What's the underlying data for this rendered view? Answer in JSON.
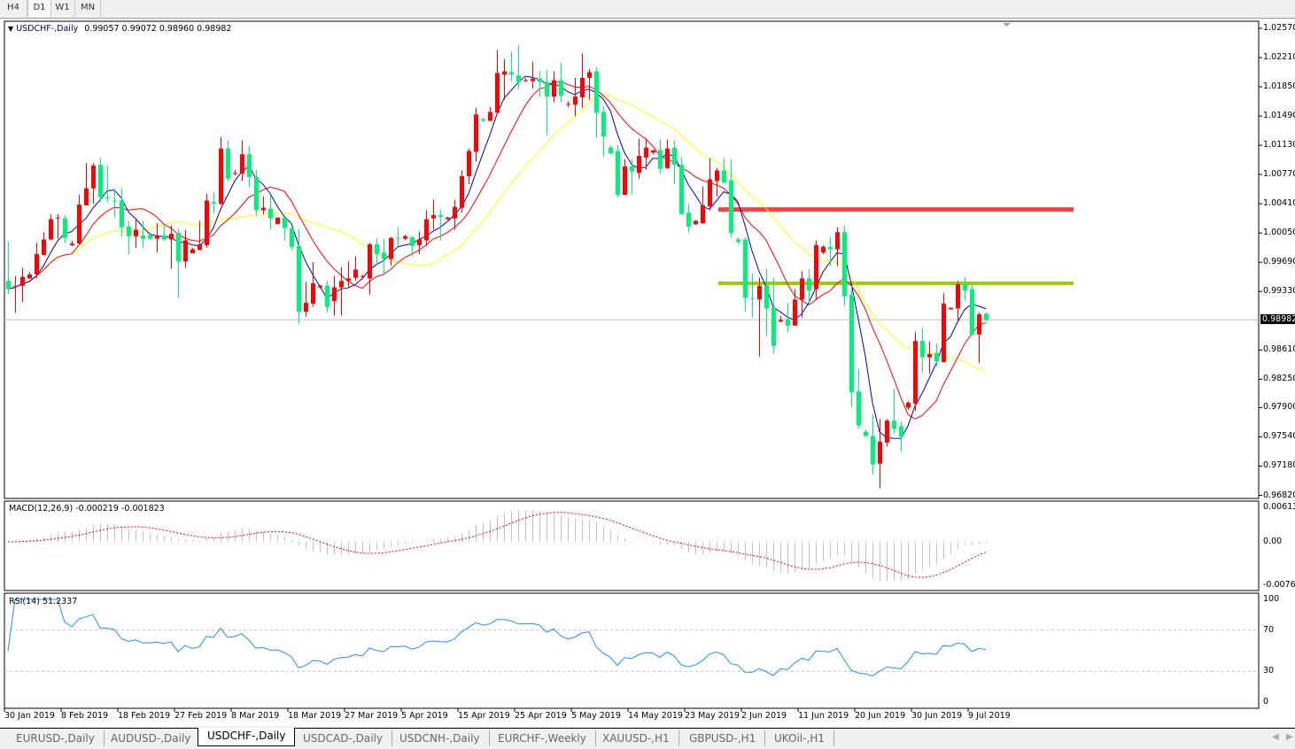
{
  "toolbar": {
    "timeframes": [
      "H4",
      "D1",
      "W1",
      "MN"
    ],
    "active": "D1"
  },
  "header": {
    "symbol": "USDCHF-,Daily",
    "ohlc": "0.99057 0.99072 0.98960 0.98982"
  },
  "macd_header": {
    "label": "MACD(12,26,9)",
    "values": "-0.000219 -0.001823"
  },
  "rsi_header": {
    "label": "RSI(14)",
    "value": "51.2337"
  },
  "tabs": [
    "EURUSD-,Daily",
    "AUDUSD-,Daily",
    "USDCHF-,Daily",
    "USDCAD-,Daily",
    "USDCNH-,Daily",
    "EURCHF-,Weekly",
    "XAUUSD-,H1",
    "GBPUSD-,H1",
    "UKOil-,H1"
  ],
  "active_tab": "USDCHF-,Daily",
  "colors": {
    "bull": "#ff0000",
    "bear": "#00f07a",
    "ma_fast": "#0000cc",
    "ma_mid": "#ff0000",
    "ma_slow": "#ffff00",
    "resistance": "#ff4040",
    "support": "#9acd00",
    "macd_hist": "#c0c0c0",
    "macd_signal": "#ff0000",
    "rsi": "#1e90ff"
  },
  "chart_data": {
    "type": "candlestick",
    "symbol": "USDCHF-",
    "timeframe": "Daily",
    "date_labels": [
      "30 Jan 2019",
      "8 Feb 2019",
      "18 Feb 2019",
      "27 Feb 2019",
      "8 Mar 2019",
      "18 Mar 2019",
      "27 Mar 2019",
      "5 Apr 2019",
      "15 Apr 2019",
      "25 Apr 2019",
      "5 May 2019",
      "14 May 2019",
      "23 May 2019",
      "2 Jun 2019",
      "11 Jun 2019",
      "20 Jun 2019",
      "30 Jun 2019",
      "9 Jul 2019"
    ],
    "price_ticks": [
      "1.02570",
      "1.02210",
      "1.01850",
      "1.01490",
      "1.01130",
      "1.00770",
      "1.00410",
      "1.00050",
      "0.99690",
      "0.99330",
      "0.98610",
      "0.98250",
      "0.97900",
      "0.97540",
      "0.97180",
      "0.96820"
    ],
    "current_price": "0.98982",
    "ylim": [
      0.9682,
      1.0257
    ],
    "horizontal_lines": [
      {
        "price": 1.0034,
        "color": "#ff4040"
      },
      {
        "price": 0.9943,
        "color": "#9acd00"
      }
    ],
    "candles_ohlc": [
      [
        0.9946,
        0.9994,
        0.993,
        0.9936
      ],
      [
        0.9939,
        0.9952,
        0.9907,
        0.994
      ],
      [
        0.994,
        0.9962,
        0.992,
        0.9951
      ],
      [
        0.9949,
        0.9957,
        0.9948,
        0.9954
      ],
      [
        0.9954,
        0.9993,
        0.9949,
        0.9979
      ],
      [
        0.9978,
        1.0006,
        0.9977,
        0.9997
      ],
      [
        0.9997,
        1.0028,
        0.9996,
        1.0022
      ],
      [
        1.0023,
        1.0028,
        0.9998,
        1.0024
      ],
      [
        1.0023,
        1.0027,
        0.9993,
        0.9999
      ],
      [
        0.999,
        0.9996,
        0.9989,
        0.9992
      ],
      [
        0.9992,
        1.0052,
        0.9991,
        1.004
      ],
      [
        1.0039,
        1.0091,
        1.0039,
        1.006
      ],
      [
        1.006,
        1.0091,
        1.0041,
        1.0088
      ],
      [
        1.0089,
        1.0097,
        1.0043,
        1.0049
      ],
      [
        1.0049,
        1.0088,
        1.0043,
        1.0048
      ],
      [
        1.0045,
        1.006,
        1.0024,
        1.0044
      ],
      [
        1.0045,
        1.006,
        1.0,
        1.0012
      ],
      [
        1.0013,
        1.002,
        0.9979,
        1.0001
      ],
      [
        1.0001,
        1.0023,
        0.9987,
        1.0009
      ],
      [
        1.0002,
        1.002,
        0.9986,
        0.9998
      ],
      [
        1.0002,
        1.0006,
        0.9996,
        0.9998
      ],
      [
        0.9998,
        1.0017,
        0.9981,
        1.0001
      ],
      [
        1.0002,
        1.0017,
        0.9995,
        0.9997
      ],
      [
        0.9997,
        1.0014,
        0.9961,
        1.0004
      ],
      [
        1.0005,
        1.001,
        0.9925,
        0.997
      ],
      [
        0.997,
        1.0009,
        0.9962,
        0.9996
      ],
      [
        0.998,
        0.9987,
        0.998,
        0.9985
      ],
      [
        0.9984,
        1.002,
        0.9984,
        0.9991
      ],
      [
        0.999,
        1.0053,
        0.9987,
        1.0045
      ],
      [
        1.0043,
        1.0055,
        1.0029,
        1.0041
      ],
      [
        1.0041,
        1.0123,
        1.0039,
        1.0109
      ],
      [
        1.0109,
        1.0119,
        1.0069,
        1.0072
      ],
      [
        1.0078,
        1.0083,
        1.0076,
        1.0079
      ],
      [
        1.0078,
        1.0119,
        1.0069,
        1.0102
      ],
      [
        1.0102,
        1.0112,
        1.0061,
        1.0074
      ],
      [
        1.0074,
        1.0083,
        1.0026,
        1.0033
      ],
      [
        1.0033,
        1.005,
        1.0028,
        1.0036
      ],
      [
        1.0035,
        1.0052,
        1.0009,
        1.0023
      ],
      [
        1.0016,
        1.0024,
        1.0016,
        1.0024
      ],
      [
        1.0024,
        1.0024,
        0.9996,
        1.0011
      ],
      [
        1.0011,
        1.0011,
        0.9984,
        0.9988
      ],
      [
        0.9989,
        1.001,
        0.9893,
        0.9908
      ],
      [
        0.9908,
        0.9945,
        0.9902,
        0.9919
      ],
      [
        0.9918,
        0.9969,
        0.9914,
        0.9943
      ],
      [
        0.9938,
        0.9941,
        0.9937,
        0.994
      ],
      [
        0.994,
        0.9946,
        0.9907,
        0.9914
      ],
      [
        0.9921,
        0.9952,
        0.9903,
        0.9938
      ],
      [
        0.9938,
        0.9963,
        0.9903,
        0.9946
      ],
      [
        0.9946,
        0.997,
        0.9938,
        0.9949
      ],
      [
        0.995,
        0.9976,
        0.9946,
        0.996
      ],
      [
        0.9951,
        0.9954,
        0.9948,
        0.9952
      ],
      [
        0.9949,
        0.9993,
        0.9929,
        0.9991
      ],
      [
        0.9991,
        0.9999,
        0.9965,
        0.9979
      ],
      [
        0.9981,
        0.9998,
        0.9952,
        0.9973
      ],
      [
        0.9973,
        1.0,
        0.9965,
        0.9999
      ],
      [
        0.9999,
        1.0012,
        0.9989,
        0.9998
      ],
      [
        0.9998,
        1.0003,
        0.9996,
        1.0001
      ],
      [
        1.0,
        1.0001,
        0.9976,
        0.9989
      ],
      [
        0.999,
        1.0007,
        0.9979,
        0.9997
      ],
      [
        0.9996,
        1.0033,
        0.9989,
        1.0022
      ],
      [
        1.0023,
        1.0046,
        1.0009,
        1.0027
      ],
      [
        1.0027,
        1.0034,
        0.9996,
        1.0025
      ],
      [
        1.0022,
        1.0025,
        1.0021,
        1.0024
      ],
      [
        1.0023,
        1.0046,
        1.0009,
        1.0037
      ],
      [
        1.0036,
        1.0082,
        1.003,
        1.0075
      ],
      [
        1.0075,
        1.0109,
        1.0065,
        1.0106
      ],
      [
        1.0105,
        1.0159,
        1.0093,
        1.0151
      ],
      [
        1.0145,
        1.0147,
        1.0142,
        1.0143
      ],
      [
        1.0143,
        1.016,
        1.0143,
        1.0154
      ],
      [
        1.0153,
        1.023,
        1.0153,
        1.0202
      ],
      [
        1.02,
        1.0219,
        1.0169,
        1.0204
      ],
      [
        1.0203,
        1.0228,
        1.0192,
        1.02
      ],
      [
        1.0199,
        1.0236,
        1.0182,
        1.0191
      ],
      [
        1.0192,
        1.0196,
        1.0191,
        1.0193
      ],
      [
        1.0192,
        1.0216,
        1.0183,
        1.0195
      ],
      [
        1.0195,
        1.0204,
        1.0173,
        1.0191
      ],
      [
        1.0191,
        1.0206,
        1.0125,
        1.0173
      ],
      [
        1.0173,
        1.0204,
        1.0166,
        1.0193
      ],
      [
        1.0193,
        1.0215,
        1.0166,
        1.0174
      ],
      [
        1.0163,
        1.0167,
        1.016,
        1.0164
      ],
      [
        1.0163,
        1.0196,
        1.0149,
        1.0173
      ],
      [
        1.0172,
        1.0226,
        1.0159,
        1.0196
      ],
      [
        1.0196,
        1.0207,
        1.0169,
        1.0203
      ],
      [
        1.0204,
        1.0209,
        1.0122,
        1.0153
      ],
      [
        1.0154,
        1.0161,
        1.0099,
        1.0124
      ],
      [
        1.011,
        1.0113,
        1.0102,
        1.0103
      ],
      [
        1.0106,
        1.0113,
        1.0049,
        1.0052
      ],
      [
        1.0052,
        1.0096,
        1.0052,
        1.0087
      ],
      [
        1.0087,
        1.0096,
        1.0053,
        1.0081
      ],
      [
        1.0079,
        1.0121,
        1.0072,
        1.01
      ],
      [
        1.0098,
        1.0121,
        1.0083,
        1.011
      ],
      [
        1.0104,
        1.0107,
        1.0102,
        1.0107
      ],
      [
        1.0107,
        1.012,
        1.0078,
        1.0084
      ],
      [
        1.0085,
        1.012,
        1.0084,
        1.0109
      ],
      [
        1.011,
        1.0119,
        1.0065,
        1.0089
      ],
      [
        1.0089,
        1.0098,
        1.0028,
        1.0028
      ],
      [
        1.003,
        1.0041,
        1.0006,
        1.0013
      ],
      [
        1.0016,
        1.0021,
        1.0015,
        1.002
      ],
      [
        1.0017,
        1.0062,
        1.0016,
        1.0039
      ],
      [
        1.0038,
        1.0097,
        1.0033,
        1.0071
      ],
      [
        1.0069,
        1.0085,
        1.005,
        1.0082
      ],
      [
        1.0082,
        1.0097,
        1.0066,
        1.0067
      ],
      [
        1.007,
        1.0096,
        0.9999,
        1.0005
      ],
      [
        0.9997,
        1.0,
        0.9992,
        0.9994
      ],
      [
        0.9997,
        1.0,
        0.9908,
        0.9925
      ],
      [
        0.9925,
        0.9955,
        0.9901,
        0.9924
      ],
      [
        0.9923,
        0.995,
        0.9853,
        0.994
      ],
      [
        0.994,
        0.9961,
        0.9878,
        0.9912
      ],
      [
        0.9913,
        0.995,
        0.9857,
        0.9866
      ],
      [
        0.9896,
        0.9903,
        0.9895,
        0.9898
      ],
      [
        0.9899,
        0.9919,
        0.9883,
        0.9891
      ],
      [
        0.9891,
        0.9936,
        0.9891,
        0.9923
      ],
      [
        0.9923,
        0.9958,
        0.9901,
        0.9949
      ],
      [
        0.9949,
        0.996,
        0.9916,
        0.9934
      ],
      [
        0.9936,
        0.9996,
        0.9923,
        0.999
      ],
      [
        0.9981,
        0.999,
        0.9979,
        0.9988
      ],
      [
        0.9988,
        1.0,
        0.9964,
        0.9985
      ],
      [
        0.9985,
        1.0012,
        0.9964,
        1.0006
      ],
      [
        1.0006,
        1.0014,
        0.9915,
        0.9927
      ],
      [
        0.9929,
        0.994,
        0.979,
        0.9809
      ],
      [
        0.981,
        0.9837,
        0.9764,
        0.9768
      ],
      [
        0.976,
        0.9763,
        0.9754,
        0.9755
      ],
      [
        0.9755,
        0.9782,
        0.9708,
        0.972
      ],
      [
        0.9721,
        0.9776,
        0.9691,
        0.9748
      ],
      [
        0.9747,
        0.9776,
        0.9742,
        0.9774
      ],
      [
        0.9774,
        0.9813,
        0.9758,
        0.9764
      ],
      [
        0.9767,
        0.9773,
        0.9736,
        0.9754
      ],
      [
        0.979,
        0.9798,
        0.9787,
        0.9796
      ],
      [
        0.9795,
        0.9883,
        0.9786,
        0.9872
      ],
      [
        0.9872,
        0.9888,
        0.9833,
        0.9852
      ],
      [
        0.9852,
        0.9871,
        0.9832,
        0.9856
      ],
      [
        0.9857,
        0.9869,
        0.984,
        0.9847
      ],
      [
        0.9846,
        0.9931,
        0.9846,
        0.9918
      ],
      [
        0.9911,
        0.9913,
        0.9911,
        0.9913
      ],
      [
        0.9912,
        0.9946,
        0.9896,
        0.9942
      ],
      [
        0.9942,
        0.9951,
        0.9921,
        0.9934
      ],
      [
        0.9936,
        0.9941,
        0.9877,
        0.988
      ],
      [
        0.988,
        0.9907,
        0.9845,
        0.9905
      ],
      [
        0.99057,
        0.99072,
        0.9896,
        0.98982
      ]
    ],
    "macd": {
      "ticks": [
        "0.00613",
        "0.00",
        "-0.00761"
      ],
      "range": [
        -0.00761,
        0.00613
      ]
    },
    "rsi": {
      "ticks": [
        "100",
        "70",
        "30",
        "0"
      ],
      "levels": [
        70,
        30
      ],
      "range": [
        0,
        100
      ]
    }
  }
}
